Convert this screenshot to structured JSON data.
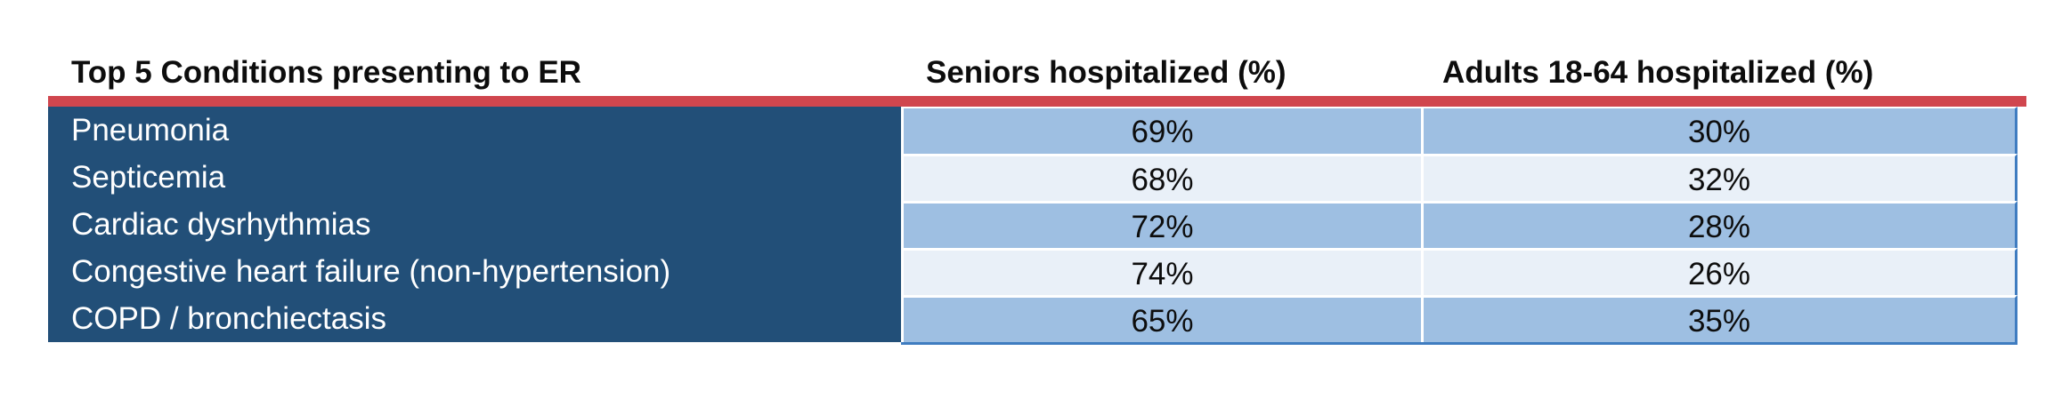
{
  "chart_data": {
    "type": "table",
    "columns": [
      "Top 5 Conditions presenting to ER",
      "Seniors hospitalized (%)",
      "Adults 18-64 hospitalized (%)"
    ],
    "rows": [
      [
        "Pneumonia",
        "69%",
        "30%"
      ],
      [
        "Septicemia",
        "68%",
        "32%"
      ],
      [
        "Cardiac dysrhythmias",
        "72%",
        "28%"
      ],
      [
        "Congestive heart failure (non-hypertension)",
        "74%",
        "26%"
      ],
      [
        "COPD / bronchiectasis",
        "65%",
        "35%"
      ]
    ],
    "colors": {
      "header_rule": "#d0464e",
      "label_column": "#224f78",
      "row_dark": "#9ebfe2",
      "row_light": "#e9f0f8",
      "border": "#3f7cc0"
    }
  }
}
